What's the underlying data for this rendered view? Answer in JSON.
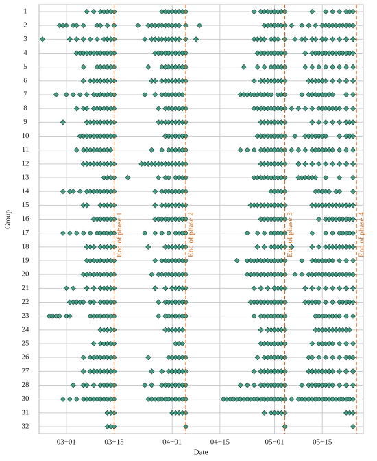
{
  "chart_data": {
    "type": "strip",
    "xlabel": "Date",
    "ylabel": "Group",
    "categories": [
      "1",
      "2",
      "3",
      "4",
      "5",
      "6",
      "7",
      "8",
      "9",
      "10",
      "11",
      "12",
      "13",
      "14",
      "15",
      "16",
      "17",
      "18",
      "19",
      "20",
      "21",
      "22",
      "23",
      "24",
      "25",
      "26",
      "27",
      "28",
      "30",
      "31",
      "32"
    ],
    "values": [
      [
        6,
        8,
        10,
        11,
        12,
        13,
        14,
        28,
        29,
        30,
        31,
        32,
        33,
        34,
        35,
        55,
        57,
        58,
        59,
        60,
        61,
        62,
        63,
        64,
        72,
        76,
        78,
        80,
        82,
        83,
        84
      ],
      [
        -2,
        -1,
        0,
        2,
        3,
        5,
        9,
        10,
        12,
        14,
        21,
        24,
        25,
        26,
        27,
        28,
        29,
        30,
        31,
        32,
        33,
        35,
        39,
        58,
        59,
        60,
        61,
        62,
        63,
        64,
        66,
        69,
        71,
        73,
        75,
        76,
        77,
        78,
        79,
        80,
        81,
        82,
        83,
        84
      ],
      [
        -7,
        1,
        3,
        5,
        7,
        9,
        11,
        12,
        13,
        14,
        23,
        25,
        26,
        27,
        28,
        29,
        30,
        31,
        32,
        33,
        35,
        38,
        55,
        56,
        57,
        58,
        60,
        61,
        62,
        64,
        67,
        69,
        70,
        72,
        73,
        75,
        76,
        78,
        80,
        82,
        84
      ],
      [
        3,
        4,
        5,
        6,
        7,
        8,
        9,
        10,
        11,
        12,
        13,
        14,
        26,
        27,
        28,
        29,
        30,
        31,
        32,
        33,
        34,
        35,
        56,
        57,
        58,
        59,
        60,
        61,
        62,
        63,
        64,
        70,
        72,
        73,
        74,
        75,
        76,
        77,
        78,
        79,
        80,
        81,
        82,
        83,
        84
      ],
      [
        5,
        9,
        10,
        11,
        12,
        13,
        14,
        24,
        28,
        29,
        30,
        31,
        32,
        33,
        34,
        35,
        52,
        56,
        58,
        60,
        61,
        62,
        63,
        64,
        70,
        72,
        74,
        76,
        78,
        80,
        82,
        84
      ],
      [
        5,
        7,
        8,
        9,
        10,
        11,
        12,
        13,
        14,
        25,
        26,
        28,
        29,
        30,
        31,
        32,
        33,
        34,
        35,
        55,
        57,
        58,
        59,
        60,
        61,
        62,
        63,
        64,
        71,
        72,
        73,
        74,
        75,
        76,
        78,
        80,
        82,
        84
      ],
      [
        -3,
        0,
        2,
        4,
        6,
        8,
        9,
        10,
        11,
        12,
        13,
        14,
        23,
        26,
        28,
        29,
        30,
        31,
        32,
        33,
        34,
        51,
        52,
        53,
        54,
        55,
        56,
        57,
        58,
        59,
        60,
        62,
        63,
        64,
        69,
        71,
        72,
        73,
        74,
        75,
        76,
        77,
        78,
        82,
        84
      ],
      [
        3,
        5,
        6,
        8,
        9,
        10,
        11,
        12,
        13,
        14,
        27,
        29,
        30,
        31,
        32,
        33,
        34,
        35,
        55,
        56,
        57,
        58,
        59,
        60,
        61,
        62,
        63,
        64,
        66,
        68,
        70,
        72,
        74,
        75,
        76,
        77,
        78,
        79,
        80,
        82,
        84
      ],
      [
        -1,
        6,
        7,
        8,
        9,
        10,
        11,
        12,
        13,
        14,
        27,
        28,
        29,
        30,
        31,
        32,
        33,
        34,
        35,
        57,
        58,
        59,
        60,
        61,
        62,
        63,
        64,
        72,
        74,
        76,
        78,
        80,
        82,
        83,
        84
      ],
      [
        4,
        5,
        6,
        7,
        8,
        9,
        10,
        11,
        12,
        13,
        14,
        29,
        30,
        31,
        32,
        33,
        34,
        35,
        56,
        57,
        58,
        59,
        60,
        61,
        62,
        63,
        64,
        67,
        70,
        71,
        72,
        73,
        74,
        75,
        76,
        80,
        82,
        83,
        84
      ],
      [
        3,
        5,
        6,
        7,
        8,
        9,
        10,
        11,
        12,
        13,
        25,
        28,
        30,
        31,
        32,
        33,
        34,
        35,
        51,
        53,
        55,
        57,
        58,
        59,
        60,
        61,
        62,
        63,
        64,
        66,
        68,
        70,
        72,
        73,
        74,
        75,
        76,
        77,
        78,
        80,
        82,
        84
      ],
      [
        5,
        6,
        7,
        8,
        9,
        10,
        11,
        12,
        13,
        14,
        22,
        23,
        24,
        25,
        26,
        27,
        28,
        29,
        30,
        31,
        32,
        33,
        34,
        35,
        57,
        58,
        59,
        60,
        61,
        62,
        63,
        64,
        68,
        70,
        72,
        74,
        76,
        78,
        80,
        82,
        84
      ],
      [
        11,
        12,
        13,
        14,
        18,
        27,
        29,
        30,
        32,
        33,
        34,
        35,
        55,
        56,
        57,
        58,
        59,
        60,
        61,
        62,
        63,
        64,
        68,
        69,
        70,
        71,
        72,
        73,
        76,
        80,
        84
      ],
      [
        -1,
        1,
        2,
        4,
        6,
        7,
        8,
        9,
        10,
        11,
        12,
        13,
        14,
        26,
        28,
        29,
        30,
        31,
        32,
        33,
        34,
        35,
        60,
        61,
        62,
        63,
        64,
        73,
        74,
        75,
        76,
        77,
        79,
        80,
        84
      ],
      [
        5,
        6,
        10,
        11,
        12,
        13,
        14,
        26,
        28,
        29,
        30,
        31,
        32,
        33,
        34,
        35,
        54,
        55,
        56,
        57,
        58,
        59,
        60,
        61,
        62,
        63,
        64,
        72,
        73,
        74,
        75,
        76,
        77,
        78,
        79,
        80,
        81,
        82,
        83,
        84
      ],
      [
        8,
        9,
        10,
        11,
        12,
        13,
        14,
        26,
        27,
        28,
        29,
        30,
        31,
        32,
        33,
        34,
        35,
        57,
        58,
        59,
        60,
        61,
        62,
        63,
        64,
        74,
        76,
        77,
        78,
        79,
        80,
        81,
        82,
        83,
        84
      ],
      [
        -1,
        1,
        3,
        5,
        7,
        9,
        10,
        11,
        12,
        13,
        14,
        23,
        26,
        28,
        30,
        32,
        33,
        34,
        35,
        53,
        56,
        58,
        60,
        61,
        62,
        63,
        64,
        72,
        76,
        78,
        80,
        81,
        82,
        83,
        84
      ],
      [
        6,
        7,
        8,
        10,
        11,
        12,
        13,
        14,
        24,
        29,
        30,
        31,
        32,
        33,
        34,
        35,
        56,
        58,
        60,
        61,
        62,
        63,
        64,
        66,
        72,
        74,
        76,
        77,
        78,
        79,
        80,
        81,
        82,
        83,
        84
      ],
      [
        6,
        7,
        8,
        9,
        10,
        11,
        12,
        13,
        14,
        26,
        28,
        29,
        30,
        31,
        32,
        33,
        34,
        35,
        50,
        53,
        54,
        55,
        56,
        57,
        58,
        59,
        60,
        61,
        62,
        63,
        64,
        69,
        72,
        73,
        74,
        75,
        76,
        77,
        78,
        80,
        82,
        84
      ],
      [
        5,
        6,
        7,
        8,
        9,
        10,
        11,
        12,
        13,
        14,
        25,
        27,
        28,
        29,
        30,
        31,
        32,
        33,
        34,
        35,
        53,
        54,
        55,
        56,
        57,
        58,
        59,
        60,
        61,
        62,
        63,
        64,
        67,
        69,
        71,
        72,
        73,
        74,
        75,
        76,
        77,
        78,
        79,
        80,
        81,
        82,
        83,
        84
      ],
      [
        0,
        2,
        6,
        8,
        10,
        11,
        12,
        13,
        14,
        26,
        29,
        31,
        32,
        33,
        34,
        35,
        55,
        57,
        59,
        61,
        62,
        63,
        64,
        70,
        72,
        74,
        76,
        78,
        80,
        82,
        84
      ],
      [
        1,
        2,
        3,
        4,
        5,
        7,
        8,
        10,
        11,
        12,
        13,
        14,
        27,
        29,
        30,
        31,
        32,
        33,
        34,
        35,
        54,
        55,
        56,
        57,
        58,
        59,
        60,
        61,
        62,
        63,
        64,
        70,
        71,
        72,
        73,
        74,
        76,
        78,
        80,
        81,
        82,
        83,
        84
      ],
      [
        -5,
        -4,
        -3,
        -2,
        0,
        1,
        7,
        8,
        9,
        10,
        11,
        12,
        13,
        14,
        27,
        29,
        30,
        31,
        32,
        33,
        34,
        35,
        55,
        57,
        58,
        59,
        60,
        61,
        62,
        63,
        64,
        73,
        74,
        75,
        76,
        77,
        78,
        79,
        80,
        82,
        84
      ],
      [
        10,
        11,
        12,
        13,
        14,
        29,
        30,
        31,
        32,
        33,
        34,
        57,
        59,
        60,
        61,
        62,
        63,
        64,
        73,
        74,
        75,
        76,
        77,
        78,
        79,
        80,
        81,
        82,
        83
      ],
      [
        8,
        10,
        11,
        12,
        13,
        14,
        32,
        33,
        34,
        57,
        58,
        59,
        60,
        61,
        62,
        63,
        64,
        72,
        74,
        75,
        76,
        77,
        78,
        80,
        82,
        84
      ],
      [
        5,
        7,
        8,
        9,
        10,
        11,
        12,
        13,
        14,
        24,
        30,
        31,
        32,
        33,
        34,
        35,
        56,
        58,
        59,
        60,
        61,
        62,
        63,
        64,
        71,
        72,
        74,
        76,
        78,
        80,
        82,
        83,
        84
      ],
      [
        5,
        7,
        8,
        9,
        10,
        11,
        12,
        13,
        14,
        25,
        28,
        30,
        31,
        32,
        33,
        34,
        35,
        55,
        57,
        58,
        59,
        60,
        61,
        62,
        63,
        64,
        71,
        72,
        73,
        74,
        75,
        76,
        77,
        78,
        80,
        82,
        84
      ],
      [
        2,
        5,
        6,
        8,
        10,
        11,
        12,
        13,
        14,
        23,
        25,
        28,
        29,
        30,
        31,
        32,
        33,
        34,
        35,
        51,
        53,
        55,
        57,
        58,
        59,
        60,
        61,
        62,
        63,
        64,
        69,
        71,
        72,
        73,
        74,
        75,
        76,
        77,
        78,
        80,
        82,
        84
      ],
      [
        -1,
        1,
        3,
        5,
        6,
        7,
        8,
        9,
        10,
        11,
        12,
        13,
        14,
        24,
        25,
        26,
        27,
        28,
        29,
        30,
        31,
        32,
        33,
        34,
        35,
        46,
        47,
        48,
        49,
        50,
        51,
        52,
        53,
        54,
        55,
        56,
        57,
        58,
        59,
        60,
        61,
        62,
        63,
        64,
        66,
        68,
        69,
        70,
        71,
        72,
        73,
        74,
        75,
        76,
        77,
        78,
        79,
        80,
        81,
        82,
        83,
        84
      ],
      [
        12,
        13,
        14,
        31,
        32,
        33,
        34,
        35,
        58,
        60,
        61,
        62,
        63,
        64,
        82,
        83,
        84
      ],
      [
        12,
        13,
        14,
        35,
        64,
        84
      ]
    ],
    "color": "#1f8a6c",
    "xlim": [
      -8,
      87
    ],
    "xticks": [
      {
        "value": 0,
        "label": "03−01"
      },
      {
        "value": 14,
        "label": "03−15"
      },
      {
        "value": 31,
        "label": "04−01"
      },
      {
        "value": 45,
        "label": "04−15"
      },
      {
        "value": 61,
        "label": "05−01"
      },
      {
        "value": 75,
        "label": "05−15"
      }
    ],
    "grid": true,
    "annotations": [
      {
        "text": "End of phase 1",
        "x": 14
      },
      {
        "text": "End of phase 2",
        "x": 35
      },
      {
        "text": "End of phase 3",
        "x": 64
      },
      {
        "text": "End of phase 4",
        "x": 85
      }
    ],
    "annotation_color": "#d2691e"
  }
}
